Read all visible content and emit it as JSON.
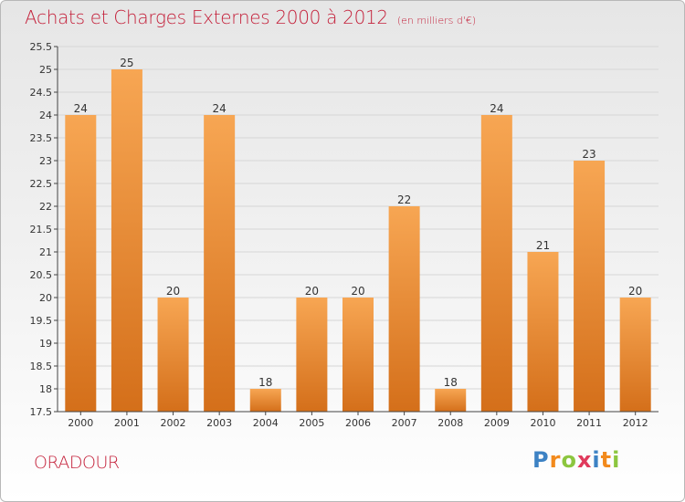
{
  "title": "Achats et Charges Externes 2000 à 2012",
  "unit": "(en milliers d'€)",
  "commune": "ORADOUR",
  "logo": {
    "text": "Proxiti",
    "letters": [
      "P",
      "r",
      "o",
      "x",
      "i",
      "t",
      "i"
    ],
    "colors": [
      "#3d82c4",
      "#f28a1c",
      "#8cc63f",
      "#e03a5c",
      "#3d82c4",
      "#f28a1c",
      "#8cc63f"
    ]
  },
  "colors": {
    "bar_light": "#f7a653",
    "bar_dark": "#d46f1a",
    "title": "#c4203a"
  },
  "chart_data": {
    "type": "bar",
    "categories": [
      "2000",
      "2001",
      "2002",
      "2003",
      "2004",
      "2005",
      "2006",
      "2007",
      "2008",
      "2009",
      "2010",
      "2011",
      "2012"
    ],
    "values": [
      24,
      25,
      20,
      24,
      18,
      20,
      20,
      22,
      18,
      24,
      21,
      23,
      20
    ],
    "data_labels": [
      "24",
      "25",
      "20",
      "24",
      "18",
      "20",
      "20",
      "22",
      "18",
      "24",
      "21",
      "23",
      "20"
    ],
    "ylim": [
      17.5,
      25.5
    ],
    "yticks": [
      17.5,
      18,
      18.5,
      19,
      19.5,
      20,
      20.5,
      21,
      21.5,
      22,
      22.5,
      23,
      23.5,
      24,
      24.5,
      25,
      25.5
    ],
    "ytick_labels": [
      "17.5",
      "18",
      "18.5",
      "19",
      "19.5",
      "20",
      "20.5",
      "21",
      "21.5",
      "22",
      "22.5",
      "23",
      "23.5",
      "24",
      "24.5",
      "25",
      "25.5"
    ],
    "grid": true,
    "xlabel": "",
    "ylabel": ""
  }
}
